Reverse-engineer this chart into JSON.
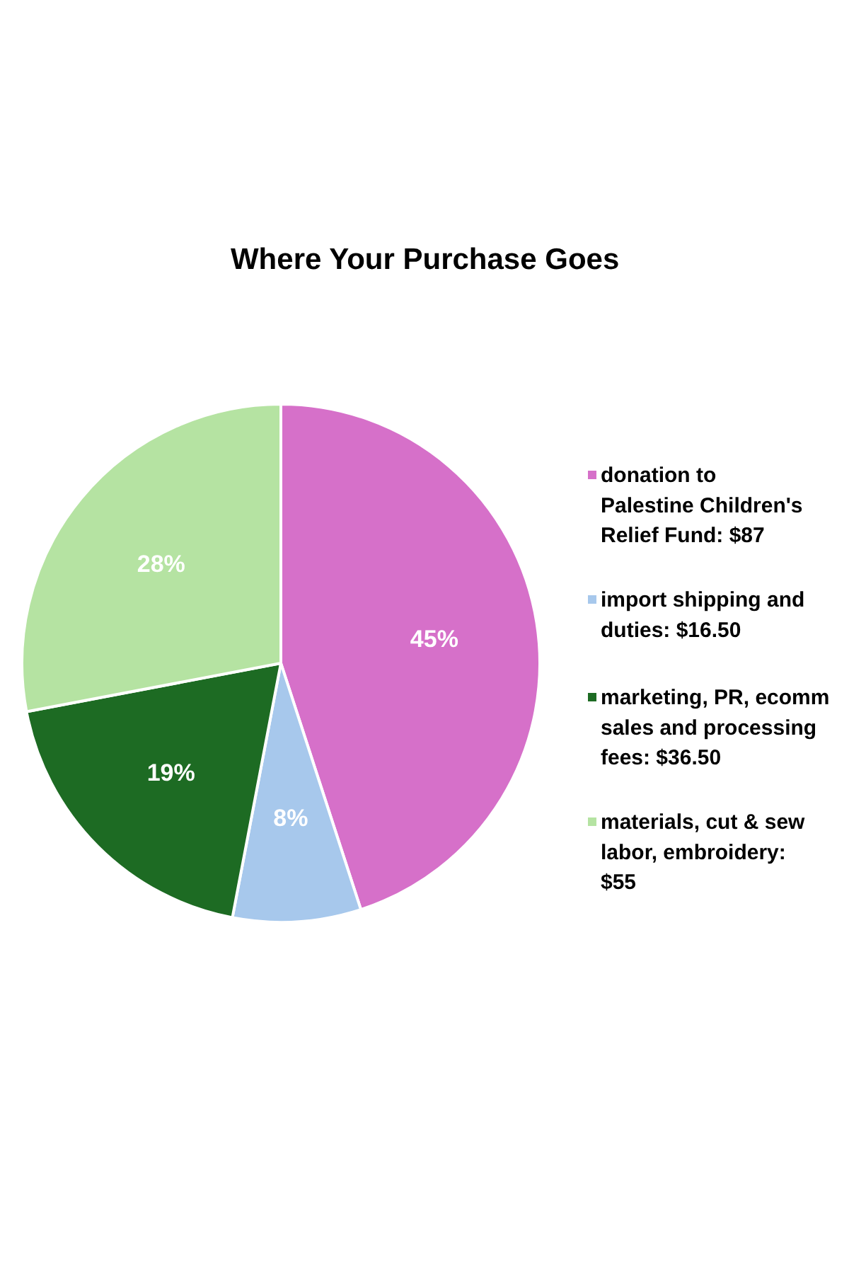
{
  "chart_data": {
    "type": "pie",
    "title": "Where Your Purchase Goes",
    "categories": [
      "donation to Palestine Children's Relief Fund: $87",
      "import shipping and duties: $16.50",
      "marketing, PR, ecomm sales and processing fees: $36.50",
      "materials, cut & sew labor, embroidery: $55"
    ],
    "values": [
      45,
      8,
      19,
      28
    ],
    "colors": [
      "#d670c9",
      "#a7c8ec",
      "#1d6b23",
      "#b5e3a2"
    ],
    "value_labels": [
      "45%",
      "8%",
      "19%",
      "28%"
    ],
    "legend": "right"
  }
}
